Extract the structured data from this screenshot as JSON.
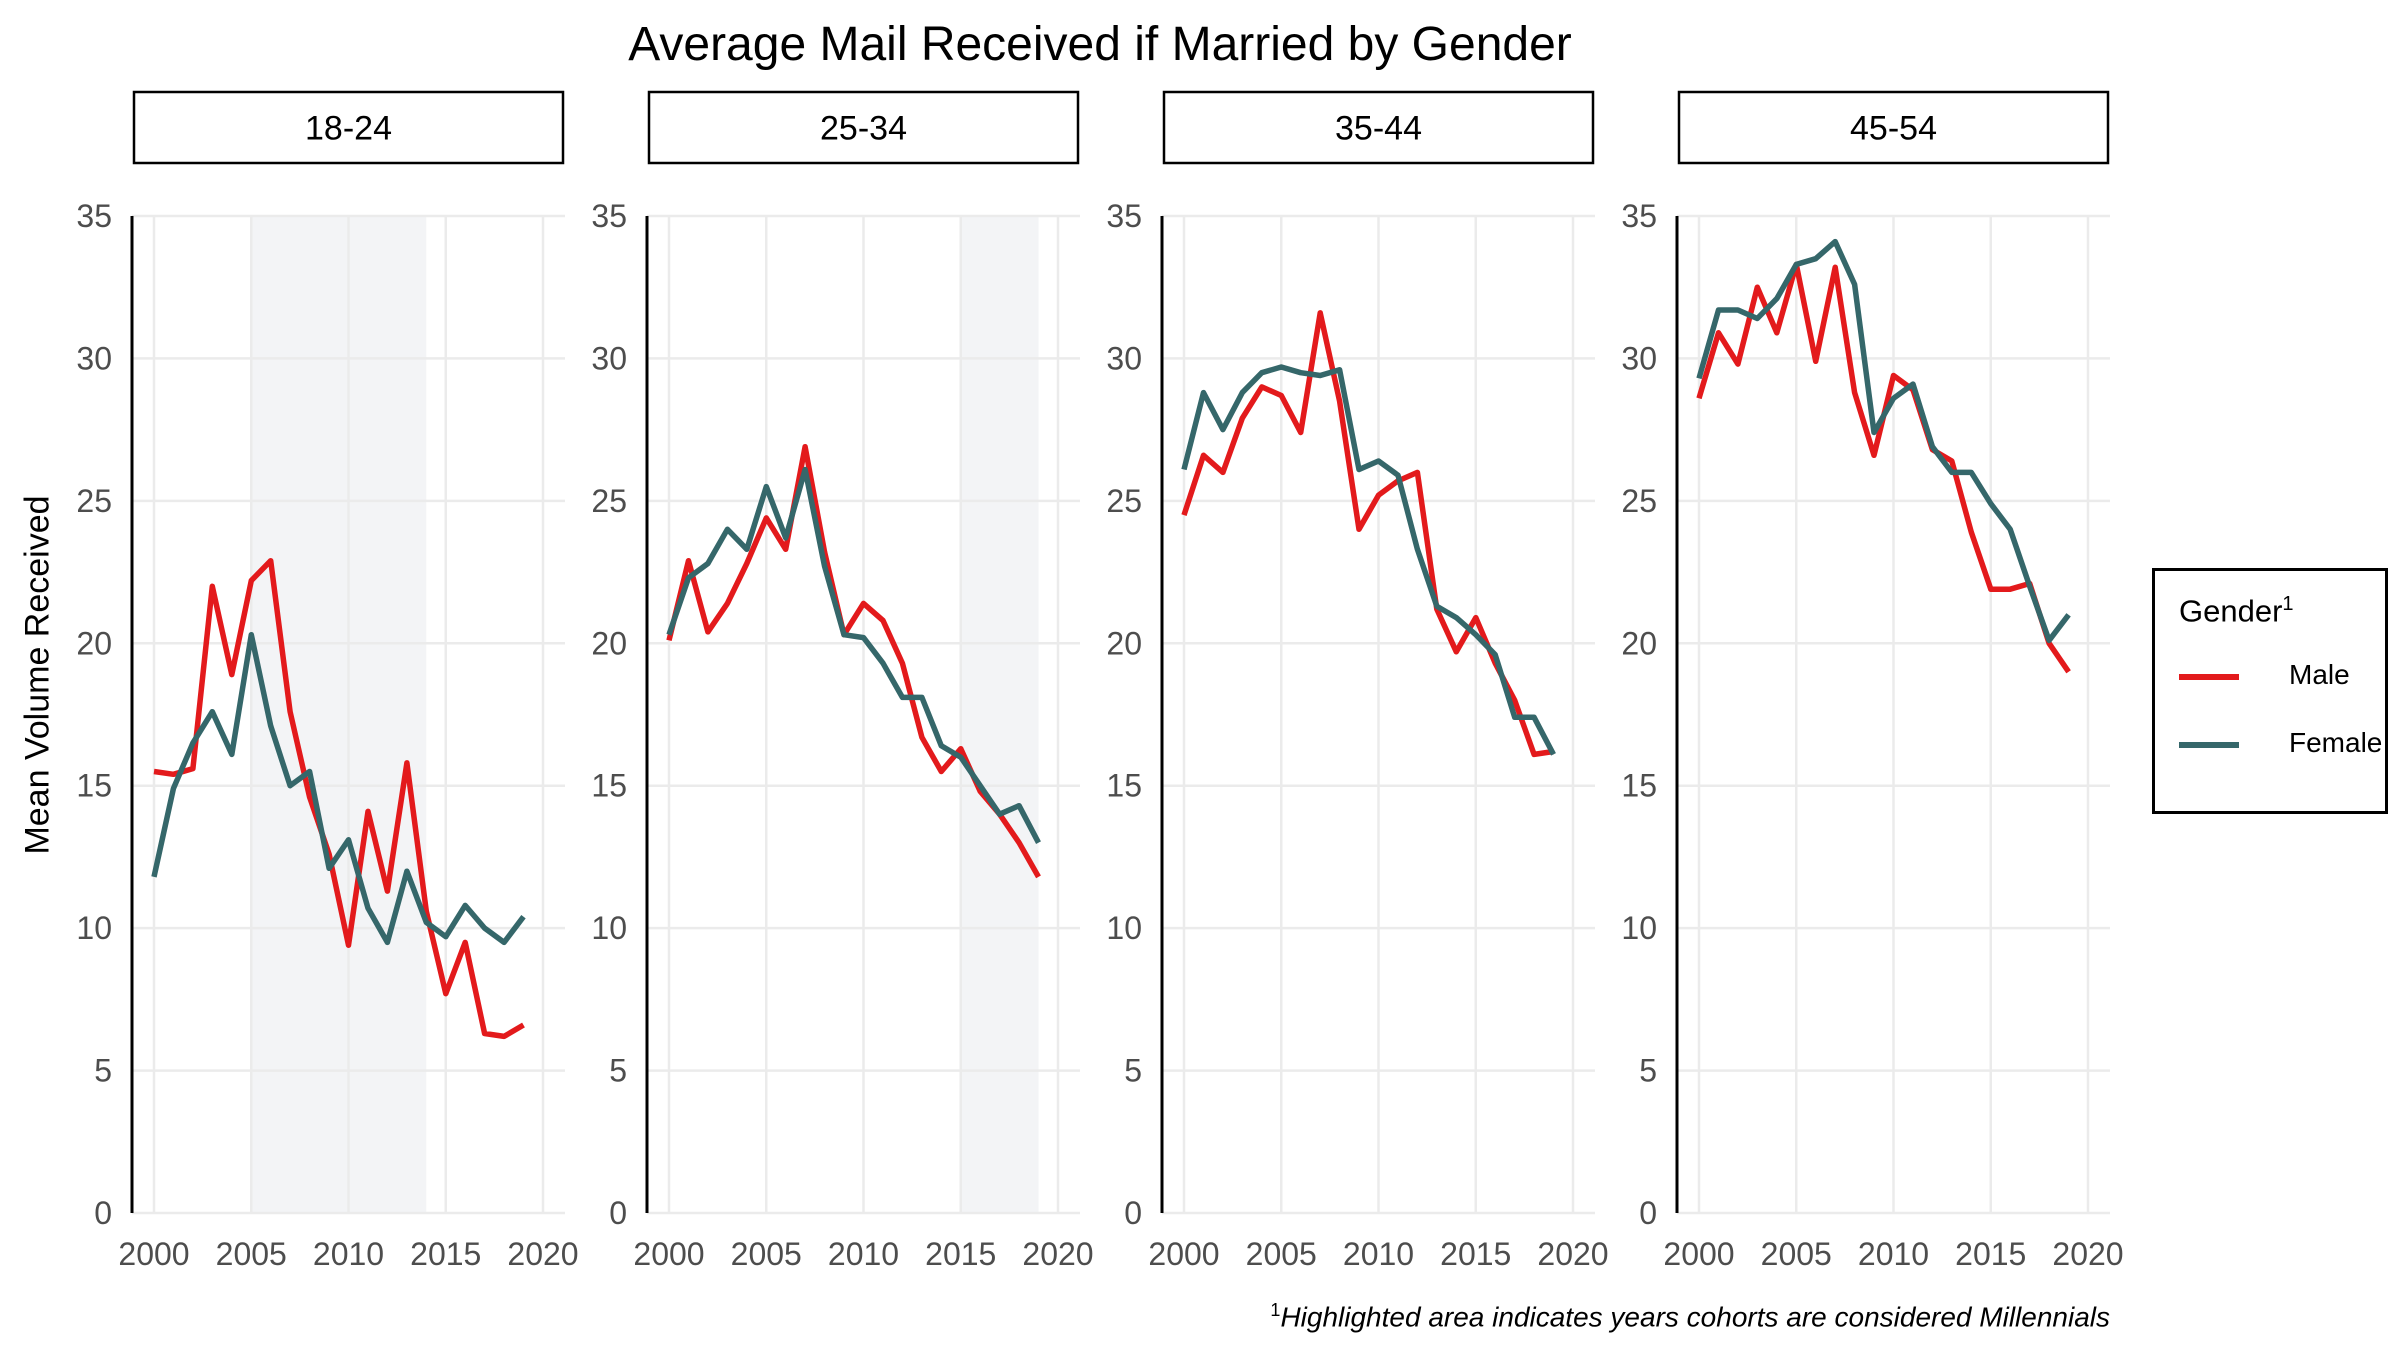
{
  "chart_data": {
    "type": "line",
    "title": "Average Mail Received if Married by Gender",
    "ylabel": "Mean Volume Received",
    "ylim": [
      0,
      35
    ],
    "xlim": [
      2000,
      2020
    ],
    "x_ticks": [
      "2000",
      "2005",
      "2010",
      "2015",
      "2020"
    ],
    "y_ticks": [
      "0",
      "5",
      "10",
      "15",
      "20",
      "25",
      "30",
      "35"
    ],
    "grid": true,
    "legend": {
      "title": "Gender",
      "title_superscript": "1",
      "position": "right",
      "entries": [
        "Male",
        "Female"
      ]
    },
    "colors": {
      "Male": "#e31a1c",
      "Female": "#35676a",
      "highlight": "#f3f4f6"
    },
    "footnote": {
      "superscript": "1",
      "text": "Highlighted area indicates years cohorts are considered Millennials"
    },
    "years": [
      2000,
      2001,
      2002,
      2003,
      2004,
      2005,
      2006,
      2007,
      2008,
      2009,
      2010,
      2011,
      2012,
      2013,
      2014,
      2015,
      2016,
      2017,
      2018,
      2019
    ],
    "facets": [
      {
        "label": "18-24",
        "highlight": [
          2005,
          2014
        ],
        "series": [
          {
            "name": "Male",
            "values": [
              15.5,
              15.4,
              15.6,
              22.0,
              18.9,
              22.2,
              22.9,
              17.6,
              14.6,
              12.6,
              9.4,
              14.1,
              11.3,
              15.8,
              10.6,
              7.7,
              9.5,
              6.3,
              6.2,
              6.6
            ]
          },
          {
            "name": "Female",
            "values": [
              11.8,
              14.9,
              16.5,
              17.6,
              16.1,
              20.3,
              17.1,
              15.0,
              15.5,
              12.1,
              13.1,
              10.7,
              9.5,
              12.0,
              10.2,
              9.7,
              10.8,
              10.0,
              9.5,
              10.4
            ]
          }
        ]
      },
      {
        "label": "25-34",
        "highlight": [
          2015,
          2019
        ],
        "series": [
          {
            "name": "Male",
            "values": [
              20.1,
              22.9,
              20.4,
              21.4,
              22.8,
              24.4,
              23.3,
              26.9,
              23.2,
              20.3,
              21.4,
              20.8,
              19.3,
              16.7,
              15.5,
              16.3,
              14.8,
              14.0,
              13.0,
              11.8
            ]
          },
          {
            "name": "Female",
            "values": [
              20.3,
              22.3,
              22.8,
              24.0,
              23.3,
              25.5,
              23.7,
              26.1,
              22.7,
              20.3,
              20.2,
              19.3,
              18.1,
              18.1,
              16.4,
              16.0,
              15.0,
              14.0,
              14.3,
              13.0
            ]
          }
        ]
      },
      {
        "label": "35-44",
        "highlight": null,
        "series": [
          {
            "name": "Male",
            "values": [
              24.5,
              26.6,
              26.0,
              27.9,
              29.0,
              28.7,
              27.4,
              31.6,
              28.5,
              24.0,
              25.2,
              25.7,
              26.0,
              21.2,
              19.7,
              20.9,
              19.3,
              18.0,
              16.1,
              16.2
            ]
          },
          {
            "name": "Female",
            "values": [
              26.1,
              28.8,
              27.5,
              28.8,
              29.5,
              29.7,
              29.5,
              29.4,
              29.6,
              26.1,
              26.4,
              25.9,
              23.3,
              21.3,
              20.9,
              20.3,
              19.6,
              17.4,
              17.4,
              16.1
            ]
          }
        ]
      },
      {
        "label": "45-54",
        "highlight": null,
        "series": [
          {
            "name": "Male",
            "values": [
              28.6,
              30.9,
              29.8,
              32.5,
              30.9,
              33.3,
              29.9,
              33.2,
              28.8,
              26.6,
              29.4,
              28.9,
              26.8,
              26.4,
              23.9,
              21.9,
              21.9,
              22.1,
              20.0,
              19.0
            ]
          },
          {
            "name": "Female",
            "values": [
              29.3,
              31.7,
              31.7,
              31.4,
              32.1,
              33.3,
              33.5,
              34.1,
              32.6,
              27.4,
              28.6,
              29.1,
              26.9,
              26.0,
              26.0,
              24.9,
              24.0,
              22.0,
              20.1,
              21.0
            ]
          }
        ]
      }
    ]
  }
}
